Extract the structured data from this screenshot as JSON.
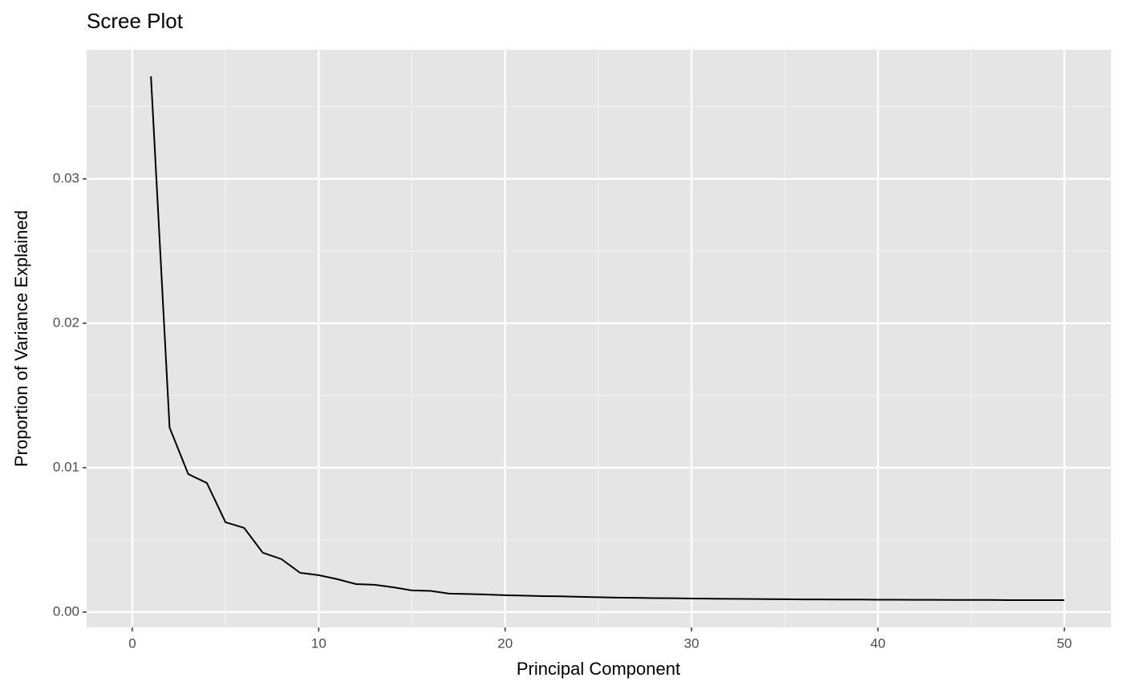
{
  "chart_data": {
    "type": "line",
    "title": "Scree Plot",
    "x_label": "Principal Component",
    "y_label": "Proportion of Variance Explained",
    "x": [
      1,
      2,
      3,
      4,
      5,
      6,
      7,
      8,
      9,
      10,
      11,
      12,
      13,
      14,
      15,
      16,
      17,
      18,
      19,
      20,
      21,
      22,
      23,
      24,
      25,
      26,
      27,
      28,
      29,
      30,
      31,
      32,
      33,
      34,
      35,
      36,
      37,
      38,
      39,
      40,
      41,
      42,
      43,
      44,
      45,
      46,
      47,
      48,
      49,
      50
    ],
    "series": [
      {
        "name": "Proportion of Variance Explained",
        "color": "#000000",
        "values": [
          0.0371,
          0.01278,
          0.00956,
          0.00894,
          0.00622,
          0.00583,
          0.00411,
          0.00367,
          0.00272,
          0.00256,
          0.00228,
          0.00194,
          0.00189,
          0.00172,
          0.0015,
          0.00147,
          0.00128,
          0.00125,
          0.00122,
          0.00117,
          0.00114,
          0.00111,
          0.00109,
          0.00106,
          0.00103,
          0.001,
          0.00099,
          0.00097,
          0.00096,
          0.00094,
          0.00093,
          0.00092,
          0.00091,
          0.0009,
          0.00089,
          0.00088,
          0.00088,
          0.00087,
          0.00087,
          0.00086,
          0.00086,
          0.00085,
          0.00085,
          0.00084,
          0.00084,
          0.00084,
          0.00083,
          0.00083,
          0.00083,
          0.00083
        ]
      }
    ],
    "xlim": [
      -2.45,
      52.5
    ],
    "xticks": [
      0,
      10,
      20,
      30,
      40,
      50
    ],
    "ylim": [
      -0.00106,
      0.03894
    ],
    "yticks": [
      {
        "value": 0,
        "label": "0.00"
      },
      {
        "value": 0.01,
        "label": "0.01"
      },
      {
        "value": 0.02,
        "label": "0.02"
      },
      {
        "value": 0.03,
        "label": "0.03"
      }
    ],
    "grid": true
  }
}
